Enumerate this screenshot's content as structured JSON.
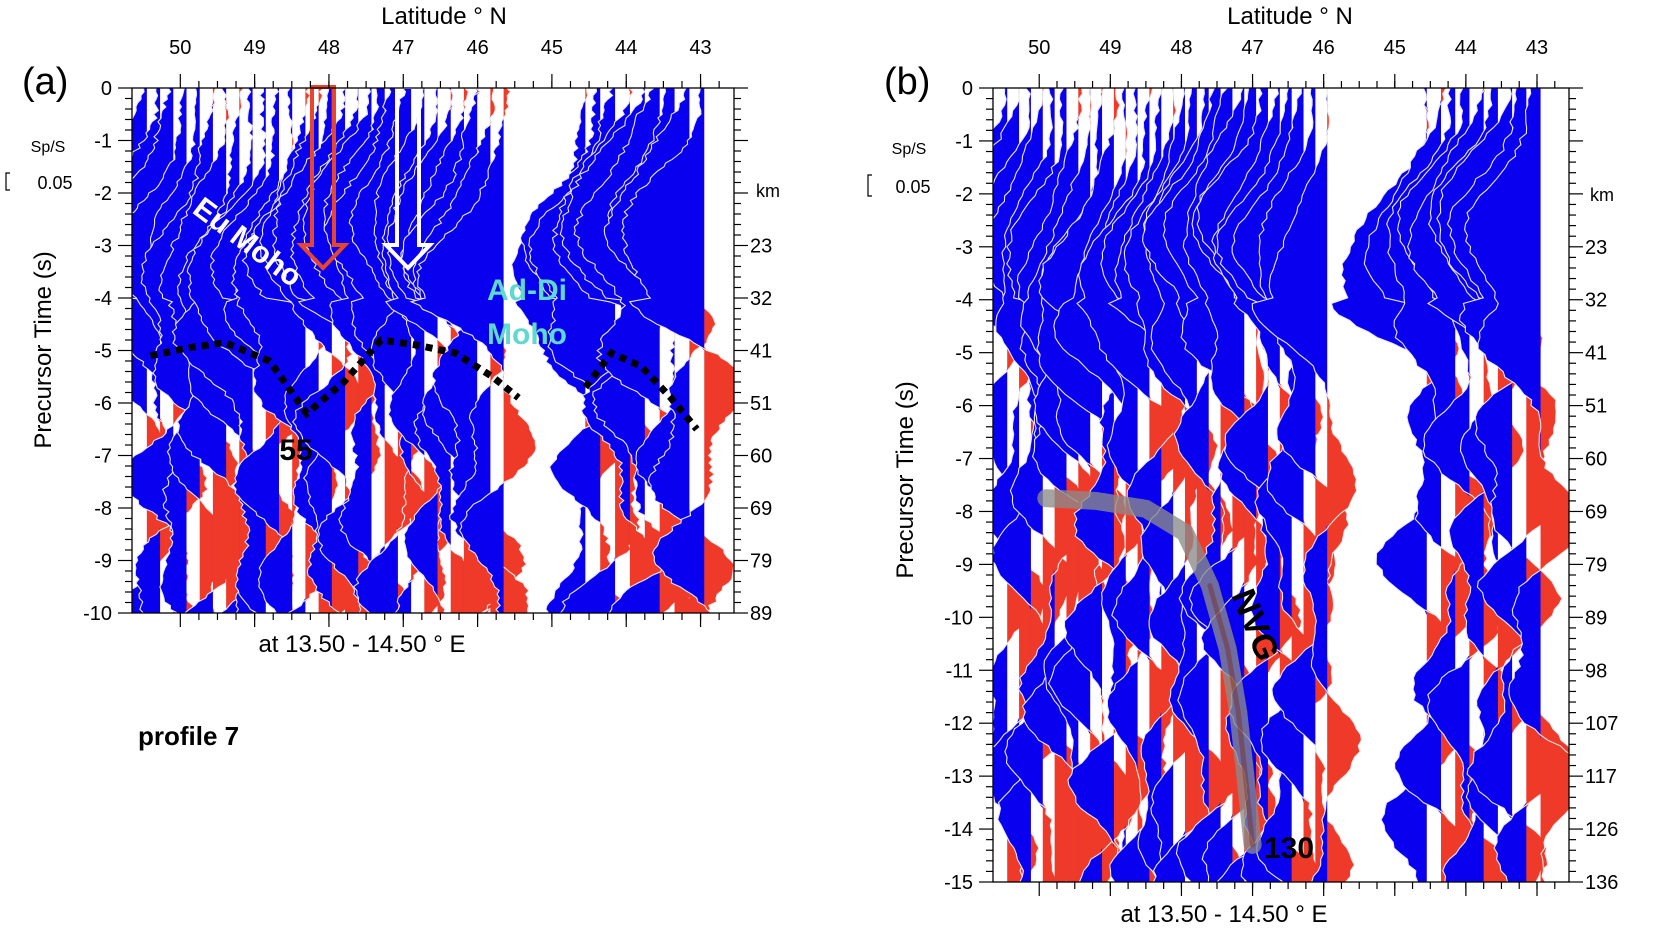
{
  "figure": {
    "profile_label": "profile 7"
  },
  "colors": {
    "negative": "#0a00f0",
    "positive": "#ef3a2a",
    "trace_line": "#e8e8e8",
    "ad_di_label": "#5fd9cf",
    "ngv_band": "#8a8a8a",
    "red_arrow": "#e8452e"
  },
  "chart_data": [
    {
      "panel": "(a)",
      "type": "wiggle-section",
      "title_top": "Latitude ° N",
      "ylabel": "Precursor Time (s)",
      "xlabel_bottom": "at 13.50 - 14.50 ° E",
      "lat_ticks": [
        50,
        49,
        48,
        47,
        46,
        45,
        44,
        43
      ],
      "lat_range": [
        50.65,
        42.55
      ],
      "ylim": [
        -10,
        0
      ],
      "time_ticks": [
        "0",
        "-1",
        "-2",
        "-3",
        "-4",
        "-5",
        "-6",
        "-7",
        "-8",
        "-9",
        "-10"
      ],
      "time_values": [
        0,
        -1,
        -2,
        -3,
        -4,
        -5,
        -6,
        -7,
        -8,
        -9,
        -10
      ],
      "km_header": "km",
      "depth_ticks": [
        {
          "t": -3,
          "label": "23"
        },
        {
          "t": -4,
          "label": "32"
        },
        {
          "t": -5,
          "label": "41"
        },
        {
          "t": -6,
          "label": "51"
        },
        {
          "t": -7,
          "label": "60"
        },
        {
          "t": -8,
          "label": "69"
        },
        {
          "t": -9,
          "label": "79"
        },
        {
          "t": -10,
          "label": "89"
        }
      ],
      "scale_label": "Sp/S",
      "scale_value": "0.05",
      "annotations": {
        "eu_moho": "Eu Moho",
        "ad_di_line1": "Ad-Di",
        "ad_di_line2": "Moho",
        "depth_value": "55"
      },
      "moho_eu_trace": [
        [
          50.4,
          -5.1
        ],
        [
          49.9,
          -4.95
        ],
        [
          49.4,
          -4.85
        ],
        [
          48.8,
          -5.2
        ],
        [
          48.3,
          -6.2
        ],
        [
          47.8,
          -5.6
        ],
        [
          47.3,
          -4.8
        ],
        [
          46.8,
          -4.9
        ],
        [
          46.3,
          -5.05
        ],
        [
          45.8,
          -5.5
        ],
        [
          45.45,
          -5.9
        ]
      ],
      "moho_ad_trace": [
        [
          44.55,
          -5.7
        ],
        [
          44.2,
          -5.05
        ],
        [
          43.8,
          -5.3
        ],
        [
          43.4,
          -5.9
        ],
        [
          43.05,
          -6.5
        ]
      ],
      "arrows": [
        {
          "lat": 48.0,
          "t_from": 0,
          "t_to": -3.35,
          "color": "red"
        },
        {
          "lat": 46.9,
          "t_from": 0,
          "t_to": -3.35,
          "color": "white"
        }
      ],
      "trace_groups": [
        {
          "from": 50.45,
          "to": 45.65,
          "n": 28
        },
        {
          "from": 44.55,
          "to": 42.95,
          "n": 9
        }
      ]
    },
    {
      "panel": "(b)",
      "type": "wiggle-section",
      "title_top": "Latitude ° N",
      "ylabel": "Precursor Time (s)",
      "xlabel_bottom": "at 13.50 - 14.50 ° E",
      "lat_ticks": [
        50,
        49,
        48,
        47,
        46,
        45,
        44,
        43
      ],
      "lat_range": [
        50.65,
        42.55
      ],
      "ylim": [
        -15,
        0
      ],
      "time_ticks": [
        "0",
        "-1",
        "-2",
        "-3",
        "-4",
        "-5",
        "-6",
        "-7",
        "-8",
        "-9",
        "-10",
        "-11",
        "-12",
        "-13",
        "-14",
        "-15"
      ],
      "time_values": [
        0,
        -1,
        -2,
        -3,
        -4,
        -5,
        -6,
        -7,
        -8,
        -9,
        -10,
        -11,
        -12,
        -13,
        -14,
        -15
      ],
      "km_header": "km",
      "depth_ticks": [
        {
          "t": -3,
          "label": "23"
        },
        {
          "t": -4,
          "label": "32"
        },
        {
          "t": -5,
          "label": "41"
        },
        {
          "t": -6,
          "label": "51"
        },
        {
          "t": -7,
          "label": "60"
        },
        {
          "t": -8,
          "label": "69"
        },
        {
          "t": -9,
          "label": "79"
        },
        {
          "t": -10,
          "label": "89"
        },
        {
          "t": -11,
          "label": "98"
        },
        {
          "t": -12,
          "label": "107"
        },
        {
          "t": -13,
          "label": "117"
        },
        {
          "t": -14,
          "label": "126"
        },
        {
          "t": -15,
          "label": "136"
        }
      ],
      "scale_label": "Sp/S",
      "scale_value": "0.05",
      "annotations": {
        "ngv": "NVG",
        "depth_value": "130"
      },
      "ngv_trace": [
        [
          49.9,
          -7.75
        ],
        [
          49.2,
          -7.8
        ],
        [
          48.5,
          -7.95
        ],
        [
          47.95,
          -8.4
        ],
        [
          47.6,
          -9.4
        ],
        [
          47.35,
          -10.6
        ],
        [
          47.2,
          -11.8
        ],
        [
          47.1,
          -13.0
        ],
        [
          47.0,
          -14.3
        ]
      ],
      "trace_groups": [
        {
          "from": 50.45,
          "to": 45.95,
          "n": 28
        },
        {
          "from": 44.55,
          "to": 42.95,
          "n": 9
        }
      ]
    }
  ]
}
